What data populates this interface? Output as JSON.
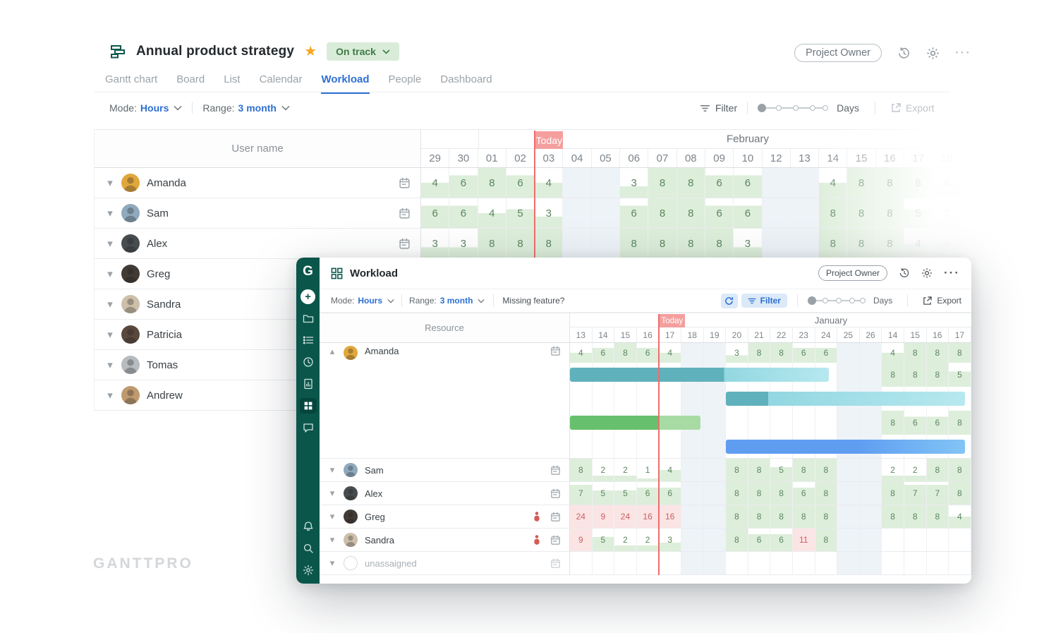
{
  "colors": {
    "sidebar": "#0a564b",
    "accent_blue": "#2e6fd3",
    "status_green_bg": "#d9ecd9",
    "status_green_text": "#3f7a45",
    "today_pink": "#f59e9e",
    "today_line": "#ee6e6e",
    "cell_green_fill": "#ddeeda",
    "cell_green_text": "#5b8660",
    "cell_red_bg": "#fbe4e4",
    "cell_red_text": "#c96065",
    "weekend_tint": "#eef3f8",
    "bar_teal_dark": "#5fb1bb",
    "bar_teal_light": "#92d7e1",
    "bar_teal_lighter": "#b7e8ef",
    "bar_green_dark": "#67c06d",
    "bar_green_light": "#a8dba3",
    "bar_blue": "#5f9df1",
    "bar_blue_light": "#83c4f6"
  },
  "background": {
    "title": "Annual product strategy",
    "status_label": "On track",
    "owner_label": "Project Owner",
    "tabs": [
      "Gantt chart",
      "Board",
      "List",
      "Calendar",
      "Workload",
      "People",
      "Dashboard"
    ],
    "active_tab": "Workload",
    "toolbar": {
      "mode_label": "Mode:",
      "mode_value": "Hours",
      "range_label": "Range:",
      "range_value": "3 month",
      "filter_label": "Filter",
      "scale_label": "Days",
      "export_label": "Export"
    },
    "table": {
      "left_header": "User name",
      "month_label": "February",
      "today_label": "Today",
      "days": [
        "29",
        "30",
        "01",
        "02",
        "03",
        "04",
        "05",
        "06",
        "07",
        "08",
        "09",
        "10",
        "12",
        "13",
        "14",
        "15",
        "16",
        "17",
        "18"
      ],
      "weekend_cols": [
        5,
        6,
        12,
        13
      ],
      "today_col": 4,
      "month_divider_col": 2,
      "rows": [
        {
          "name": "Amanda",
          "avatar_color": "#e0a73c",
          "values": [
            4,
            6,
            8,
            6,
            4,
            null,
            null,
            3,
            8,
            8,
            6,
            6,
            null,
            null,
            4,
            8,
            8,
            8,
            4
          ]
        },
        {
          "name": "Sam",
          "avatar_color": "#8fa9bd",
          "values": [
            6,
            6,
            4,
            5,
            3,
            null,
            null,
            6,
            8,
            8,
            6,
            6,
            null,
            null,
            8,
            8,
            8,
            5,
            3
          ]
        },
        {
          "name": "Alex",
          "avatar_color": "#474c4f",
          "values": [
            3,
            3,
            8,
            8,
            8,
            null,
            null,
            8,
            8,
            8,
            8,
            3,
            null,
            null,
            8,
            8,
            8,
            4,
            4
          ]
        },
        {
          "name": "Greg",
          "avatar_color": "#423a35",
          "values": []
        },
        {
          "name": "Sandra",
          "avatar_color": "#cdbfa9",
          "values": []
        },
        {
          "name": "Patricia",
          "avatar_color": "#5a483d",
          "values": []
        },
        {
          "name": "Tomas",
          "avatar_color": "#b6bcc0",
          "values": []
        },
        {
          "name": "Andrew",
          "avatar_color": "#bf9a6f",
          "values": []
        }
      ]
    },
    "watermark": "GANTTPRO"
  },
  "overlay": {
    "title": "Workload",
    "owner_label": "Project Owner",
    "toolbar": {
      "mode_label": "Mode:",
      "mode_value": "Hours",
      "range_label": "Range:",
      "range_value": "3 month",
      "missing_feature_label": "Missing feature?",
      "filter_label": "Filter",
      "scale_label": "Days",
      "export_label": "Export"
    },
    "table": {
      "left_header": "Resource",
      "month_label": "January",
      "today_label": "Today",
      "days": [
        "13",
        "14",
        "15",
        "16",
        "17",
        "18",
        "19",
        "20",
        "21",
        "22",
        "23",
        "24",
        "25",
        "26",
        "14",
        "15",
        "16",
        "17"
      ],
      "weekend_cols": [
        5,
        6,
        12,
        13
      ],
      "today_col": 4,
      "rows": [
        {
          "name": "Amanda",
          "avatar_color": "#e0a73c",
          "expanded": true,
          "values": [
            4,
            6,
            8,
            6,
            4,
            null,
            null,
            3,
            8,
            8,
            6,
            6,
            null,
            null,
            4,
            8,
            8,
            8
          ],
          "bands": [
            {
              "bar": {
                "start": 0,
                "end": 11.6,
                "split": 6.9,
                "palette": "teal"
              },
              "chips": {
                "14": 8,
                "15": 8,
                "16": 8,
                "17": 5
              }
            },
            {
              "bar": {
                "start": 7,
                "end": 17.72,
                "split": 8.9,
                "palette": "teal"
              }
            },
            {
              "bar": {
                "start": 0,
                "end": 5.85,
                "split": 4,
                "palette": "green"
              },
              "chips": {
                "14": 8,
                "15": 6,
                "16": 6,
                "17": 8
              }
            },
            {
              "bar": {
                "start": 7,
                "end": 17.72,
                "palette": "blue"
              }
            }
          ]
        },
        {
          "name": "Sam",
          "avatar_color": "#8fa9bd",
          "values": [
            8,
            2,
            2,
            1,
            4,
            null,
            null,
            8,
            8,
            5,
            8,
            8,
            null,
            null,
            2,
            2,
            8,
            8
          ]
        },
        {
          "name": "Alex",
          "avatar_color": "#474c4f",
          "values": [
            7,
            5,
            5,
            6,
            6,
            null,
            null,
            8,
            8,
            8,
            6,
            8,
            null,
            null,
            8,
            7,
            7,
            8
          ]
        },
        {
          "name": "Greg",
          "avatar_color": "#423a35",
          "overallocated": true,
          "values": [
            24,
            9,
            24,
            16,
            16,
            null,
            null,
            8,
            8,
            8,
            8,
            8,
            null,
            null,
            8,
            8,
            8,
            4
          ]
        },
        {
          "name": "Sandra",
          "avatar_color": "#cdbfa9",
          "overallocated": true,
          "values": [
            9,
            5,
            2,
            2,
            3,
            null,
            null,
            8,
            6,
            6,
            11,
            8,
            null,
            null,
            null,
            null,
            null,
            null
          ]
        },
        {
          "name": "unassaigned",
          "unassigned": true,
          "values": []
        }
      ]
    }
  }
}
